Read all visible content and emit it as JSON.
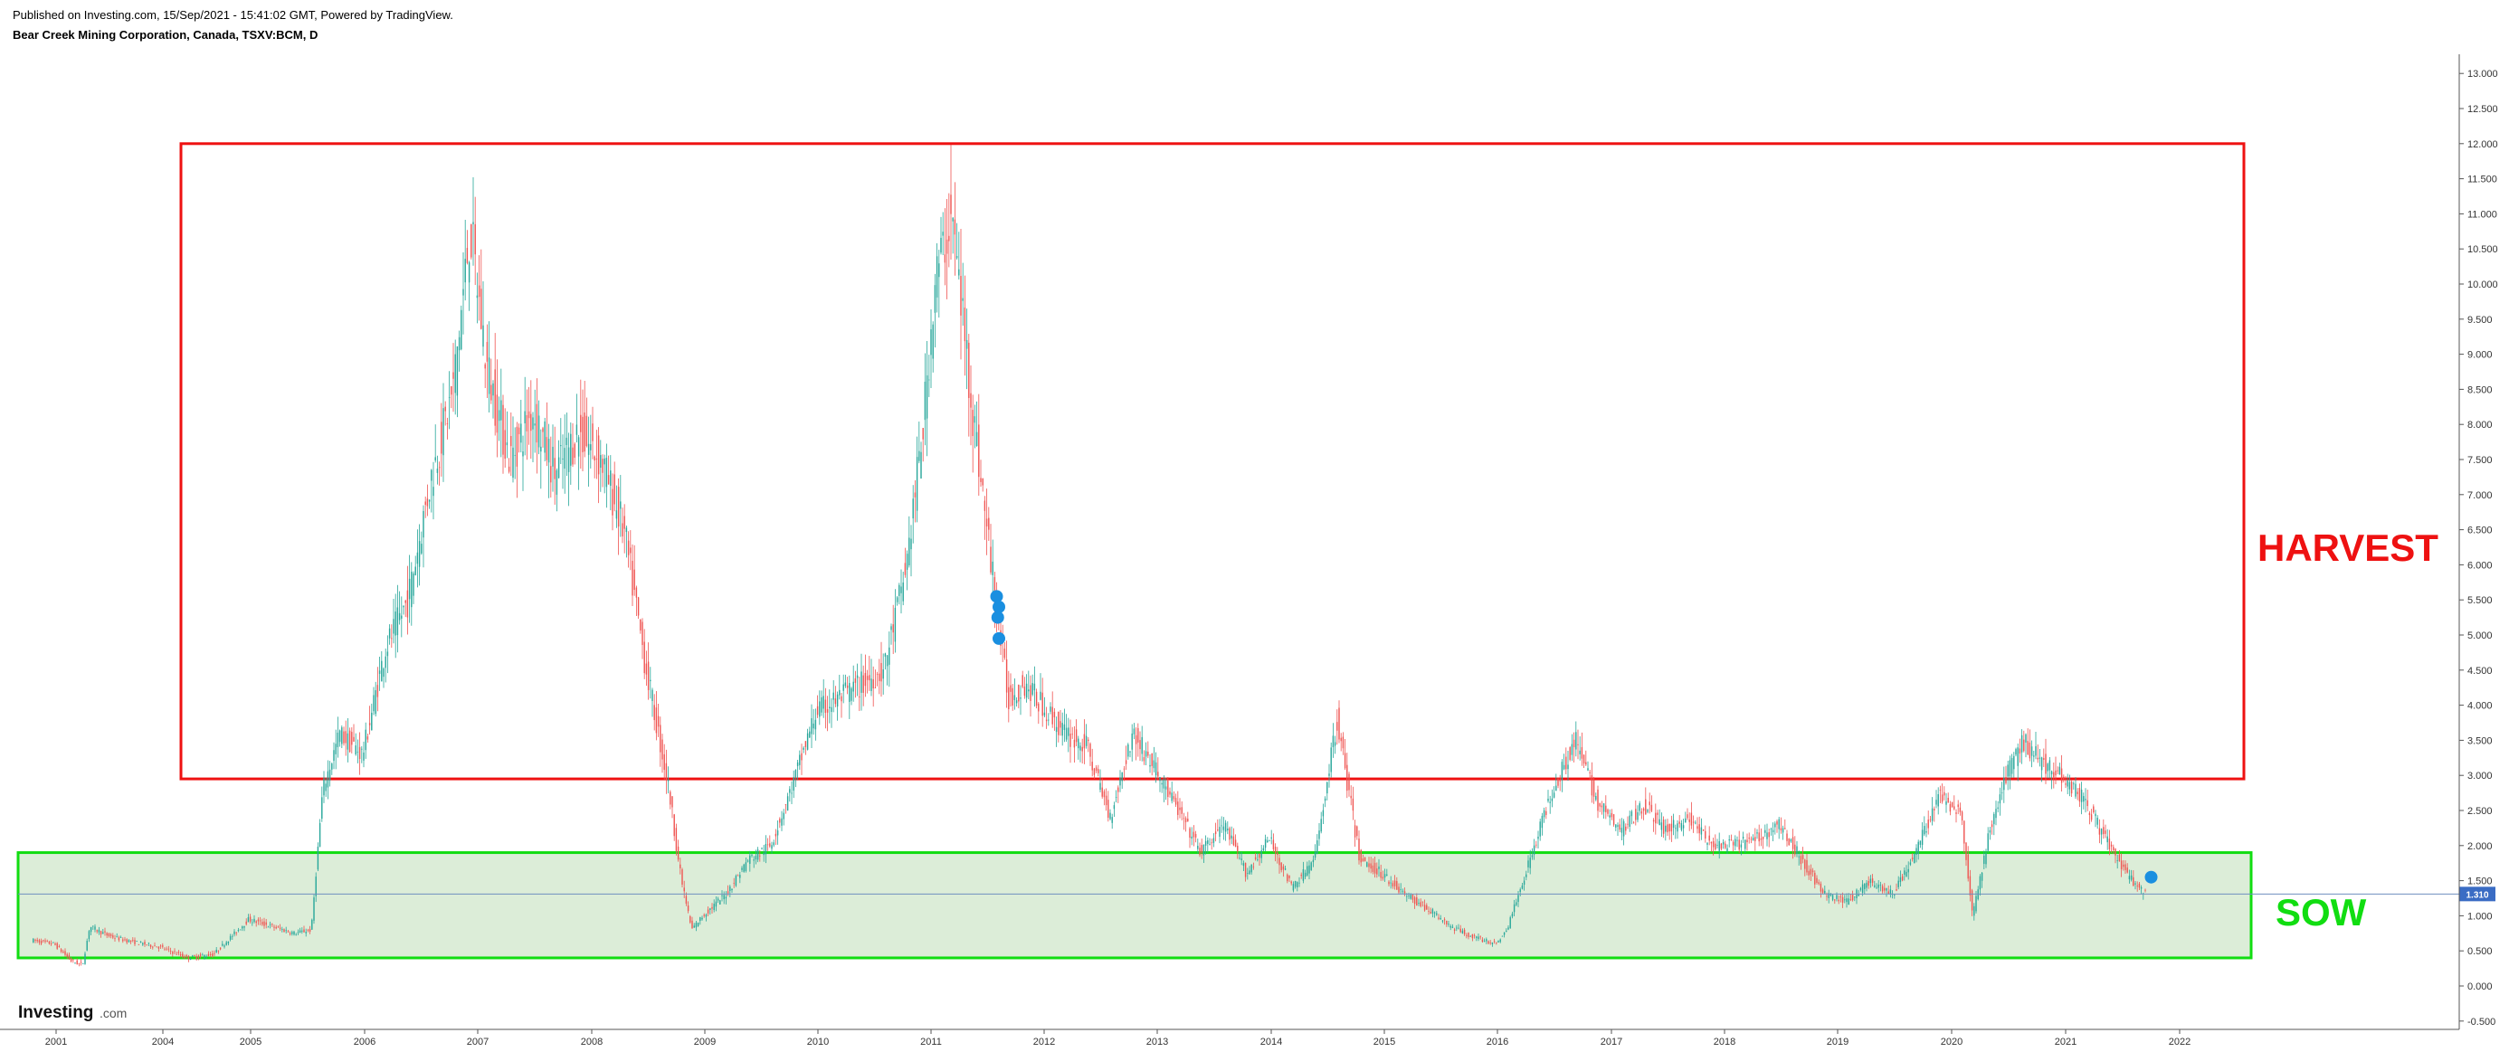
{
  "header": {
    "published": "Published on Investing.com, 15/Sep/2021 - 15:41:02 GMT, Powered by TradingView.",
    "symbol": "Bear Creek Mining Corporation, Canada, TSXV:BCM, D"
  },
  "logo": {
    "text": "Investing",
    "suffix": ".com"
  },
  "colors": {
    "up": "#26a69a",
    "down": "#ef5350",
    "harvest": "#ee1111",
    "sow": "#11dd11",
    "sow_fill": "#dcedd8",
    "price_line": "#6f8fbf",
    "price_badge": "#3a6cc4",
    "event_marker": "#1a8fe0"
  },
  "chart_data": {
    "type": "candlestick",
    "title": "Bear Creek Mining Corporation, Canada, TSXV:BCM, D",
    "xlabel": "",
    "ylabel": "",
    "x_ticks": [
      "2001",
      "2004",
      "2005",
      "2006",
      "2007",
      "2008",
      "2009",
      "2010",
      "2011",
      "2012",
      "2013",
      "2014",
      "2015",
      "2016",
      "2017",
      "2018",
      "2019",
      "2020",
      "2021",
      "2022"
    ],
    "y_ticks": [
      "-0.500",
      "0.000",
      "0.500",
      "1.000",
      "1.500",
      "2.000",
      "2.500",
      "3.000",
      "3.500",
      "4.000",
      "4.500",
      "5.000",
      "5.500",
      "6.000",
      "6.500",
      "7.000",
      "7.500",
      "8.000",
      "8.500",
      "9.000",
      "9.500",
      "10.000",
      "10.500",
      "11.000",
      "11.500",
      "12.000",
      "12.500",
      "13.000"
    ],
    "ylim": [
      -0.5,
      13.0
    ],
    "current_price": "1.310",
    "series": [
      {
        "x": [
          2000.7,
          2001.0,
          2001.2,
          2001.5,
          2001.8,
          2002.0,
          2002.5,
          2003.0,
          2003.5,
          2004.0,
          2004.3,
          2004.6,
          2004.8,
          2005.0,
          2005.2,
          2005.4,
          2005.55,
          2005.65,
          2005.8,
          2006.0,
          2006.2,
          2006.4,
          2006.6,
          2006.8,
          2006.95,
          2007.1,
          2007.3,
          2007.5,
          2007.7,
          2007.9,
          2008.1,
          2008.3,
          2008.5,
          2008.7,
          2008.8,
          2008.9,
          2009.0,
          2009.2,
          2009.4,
          2009.6,
          2009.8,
          2010.0,
          2010.2,
          2010.4,
          2010.6,
          2010.8,
          2010.95,
          2011.05,
          2011.2,
          2011.4,
          2011.55,
          2011.7,
          2011.85,
          2012.0,
          2012.2,
          2012.4,
          2012.6,
          2012.8,
          2013.0,
          2013.2,
          2013.4,
          2013.6,
          2013.8,
          2014.0,
          2014.2,
          2014.4,
          2014.6,
          2014.8,
          2015.0,
          2015.2,
          2015.4,
          2015.6,
          2015.8,
          2016.0,
          2016.1,
          2016.3,
          2016.5,
          2016.7,
          2016.9,
          2017.1,
          2017.3,
          2017.5,
          2017.7,
          2017.9,
          2018.1,
          2018.3,
          2018.5,
          2018.7,
          2018.9,
          2019.1,
          2019.3,
          2019.5,
          2019.7,
          2019.9,
          2020.1,
          2020.2,
          2020.35,
          2020.5,
          2020.65,
          2020.8,
          2021.0,
          2021.2,
          2021.4,
          2021.55,
          2021.7
        ],
        "y": [
          0.65,
          0.6,
          0.5,
          0.35,
          0.3,
          0.85,
          0.72,
          0.65,
          0.6,
          0.55,
          0.4,
          0.45,
          0.7,
          0.95,
          0.85,
          0.75,
          0.8,
          2.8,
          3.6,
          3.3,
          4.8,
          5.5,
          7.2,
          8.5,
          10.8,
          8.8,
          7.5,
          8.2,
          7.3,
          7.9,
          7.5,
          6.5,
          4.5,
          2.8,
          1.6,
          0.8,
          1.0,
          1.3,
          1.8,
          2.0,
          2.9,
          3.9,
          4.1,
          4.3,
          4.5,
          6.0,
          8.0,
          10.0,
          11.0,
          8.0,
          6.0,
          4.1,
          4.3,
          4.0,
          3.6,
          3.4,
          2.4,
          3.6,
          3.1,
          2.5,
          1.9,
          2.3,
          1.6,
          2.1,
          1.4,
          1.8,
          3.8,
          1.8,
          1.6,
          1.3,
          1.1,
          0.85,
          0.7,
          0.6,
          0.8,
          1.8,
          2.8,
          3.5,
          2.6,
          2.2,
          2.6,
          2.2,
          2.4,
          2.0,
          2.0,
          2.1,
          2.3,
          1.8,
          1.3,
          1.2,
          1.5,
          1.3,
          1.9,
          2.7,
          2.5,
          1.0,
          2.2,
          3.0,
          3.5,
          3.2,
          3.0,
          2.6,
          2.0,
          1.6,
          1.31
        ]
      }
    ],
    "annotations": [
      {
        "label": "HARVEST",
        "y_range": [
          2.95,
          12.0
        ]
      },
      {
        "label": "SOW",
        "y_range": [
          0.4,
          1.9
        ]
      }
    ],
    "grid": false,
    "legend": "none"
  }
}
